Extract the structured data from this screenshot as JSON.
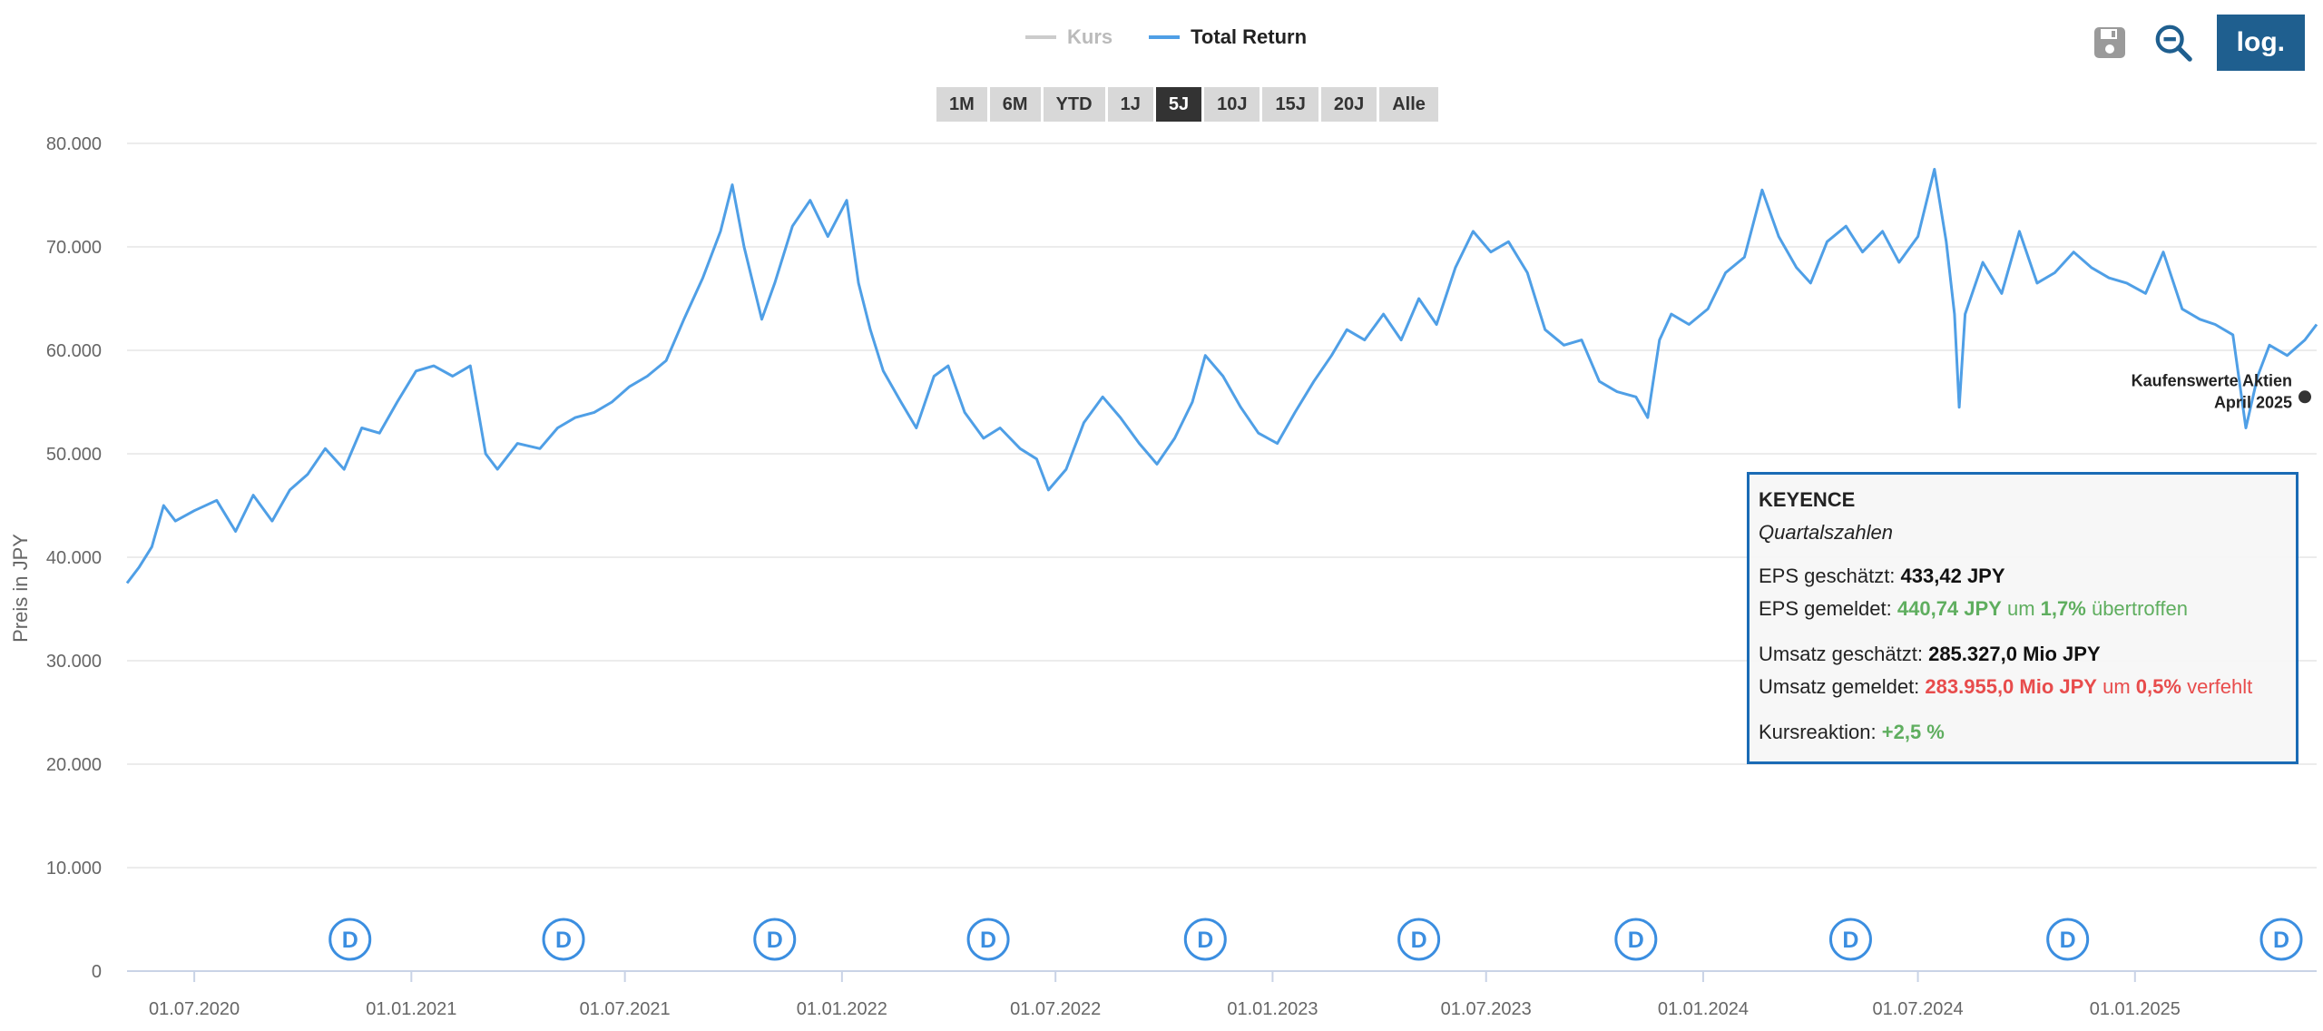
{
  "toolbar": {
    "log_label": "log."
  },
  "legend": [
    {
      "label": "Kurs",
      "color": "#cccccc"
    },
    {
      "label": "Total Return",
      "color": "#4f9fe6"
    }
  ],
  "ranges": {
    "items": [
      "1M",
      "6M",
      "YTD",
      "1J",
      "5J",
      "10J",
      "15J",
      "20J",
      "Alle"
    ],
    "active": "5J"
  },
  "tooltip": {
    "company": "KEYENCE",
    "subtitle": "Quartalszahlen",
    "eps_est_label": "EPS geschätzt:",
    "eps_est_value": "433,42 JPY",
    "eps_rep_label": "EPS gemeldet:",
    "eps_rep_value": "440,74 JPY",
    "eps_rep_um": "um",
    "eps_rep_pct": "1,7%",
    "eps_rep_result": "übertroffen",
    "rev_est_label": "Umsatz geschätzt:",
    "rev_est_value": "285.327,0 Mio JPY",
    "rev_rep_label": "Umsatz gemeldet:",
    "rev_rep_value": "283.955,0 Mio JPY",
    "rev_rep_um": "um",
    "rev_rep_pct": "0,5%",
    "rev_rep_result": "verfehlt",
    "reaction_label": "Kursreaktion:",
    "reaction_value": "+2,5 %"
  },
  "colors": {
    "line": "#4f9fe6",
    "grid": "#e6e6e6",
    "axis_text": "#666666",
    "dividend": "#3b8ee0",
    "tooltip_border": "#1a6bb5"
  },
  "chart_data": {
    "type": "line",
    "ylabel": "Preis in JPY",
    "ylim": [
      0,
      80000
    ],
    "yticks": [
      0,
      10000,
      20000,
      30000,
      40000,
      50000,
      60000,
      70000,
      80000
    ],
    "ytick_labels": [
      "0",
      "10.000",
      "20.000",
      "30.000",
      "40.000",
      "50.000",
      "60.000",
      "70.000",
      "80.000"
    ],
    "xlim": [
      "2020-05-05",
      "2025-06-04"
    ],
    "xticks": [
      "2020-07-01",
      "2021-01-01",
      "2021-07-01",
      "2022-01-01",
      "2022-07-01",
      "2023-01-01",
      "2023-07-01",
      "2024-01-01",
      "2024-07-01",
      "2025-01-01"
    ],
    "xtick_labels": [
      "01.07.2020",
      "01.01.2021",
      "01.07.2021",
      "01.01.2022",
      "01.07.2022",
      "01.01.2023",
      "01.07.2023",
      "01.01.2024",
      "01.07.2024",
      "01.01.2025"
    ],
    "grid": true,
    "legend_position": "top-center",
    "series": [
      {
        "name": "Total Return",
        "points": [
          [
            "2020-05-05",
            37500
          ],
          [
            "2020-05-15",
            39000
          ],
          [
            "2020-05-26",
            41000
          ],
          [
            "2020-06-05",
            45000
          ],
          [
            "2020-06-15",
            43500
          ],
          [
            "2020-07-01",
            44500
          ],
          [
            "2020-07-20",
            45500
          ],
          [
            "2020-08-05",
            42500
          ],
          [
            "2020-08-20",
            46000
          ],
          [
            "2020-09-05",
            43500
          ],
          [
            "2020-09-20",
            46500
          ],
          [
            "2020-10-05",
            48000
          ],
          [
            "2020-10-20",
            50500
          ],
          [
            "2020-11-05",
            48500
          ],
          [
            "2020-11-20",
            52500
          ],
          [
            "2020-12-05",
            52000
          ],
          [
            "2020-12-20",
            55000
          ],
          [
            "2021-01-05",
            58000
          ],
          [
            "2021-01-20",
            58500
          ],
          [
            "2021-02-05",
            57500
          ],
          [
            "2021-02-20",
            58500
          ],
          [
            "2021-03-05",
            50000
          ],
          [
            "2021-03-15",
            48500
          ],
          [
            "2021-04-01",
            51000
          ],
          [
            "2021-04-20",
            50500
          ],
          [
            "2021-05-05",
            52500
          ],
          [
            "2021-05-20",
            53500
          ],
          [
            "2021-06-05",
            54000
          ],
          [
            "2021-06-20",
            55000
          ],
          [
            "2021-07-05",
            56500
          ],
          [
            "2021-07-20",
            57500
          ],
          [
            "2021-08-05",
            59000
          ],
          [
            "2021-08-20",
            63000
          ],
          [
            "2021-09-05",
            67000
          ],
          [
            "2021-09-20",
            71500
          ],
          [
            "2021-09-30",
            76000
          ],
          [
            "2021-10-10",
            70000
          ],
          [
            "2021-10-25",
            63000
          ],
          [
            "2021-11-05",
            66500
          ],
          [
            "2021-11-20",
            72000
          ],
          [
            "2021-12-05",
            74500
          ],
          [
            "2021-12-20",
            71000
          ],
          [
            "2022-01-05",
            74500
          ],
          [
            "2022-01-15",
            66500
          ],
          [
            "2022-01-25",
            62000
          ],
          [
            "2022-02-05",
            58000
          ],
          [
            "2022-02-20",
            55000
          ],
          [
            "2022-03-05",
            52500
          ],
          [
            "2022-03-20",
            57500
          ],
          [
            "2022-04-01",
            58500
          ],
          [
            "2022-04-15",
            54000
          ],
          [
            "2022-05-01",
            51500
          ],
          [
            "2022-05-15",
            52500
          ],
          [
            "2022-06-01",
            50500
          ],
          [
            "2022-06-15",
            49500
          ],
          [
            "2022-06-25",
            46500
          ],
          [
            "2022-07-10",
            48500
          ],
          [
            "2022-07-25",
            53000
          ],
          [
            "2022-08-10",
            55500
          ],
          [
            "2022-08-25",
            53500
          ],
          [
            "2022-09-10",
            51000
          ],
          [
            "2022-09-25",
            49000
          ],
          [
            "2022-10-10",
            51500
          ],
          [
            "2022-10-25",
            55000
          ],
          [
            "2022-11-05",
            59500
          ],
          [
            "2022-11-20",
            57500
          ],
          [
            "2022-12-05",
            54500
          ],
          [
            "2022-12-20",
            52000
          ],
          [
            "2023-01-05",
            51000
          ],
          [
            "2023-01-20",
            54000
          ],
          [
            "2023-02-05",
            57000
          ],
          [
            "2023-02-20",
            59500
          ],
          [
            "2023-03-05",
            62000
          ],
          [
            "2023-03-20",
            61000
          ],
          [
            "2023-04-05",
            63500
          ],
          [
            "2023-04-20",
            61000
          ],
          [
            "2023-05-05",
            65000
          ],
          [
            "2023-05-20",
            62500
          ],
          [
            "2023-06-05",
            68000
          ],
          [
            "2023-06-20",
            71500
          ],
          [
            "2023-07-05",
            69500
          ],
          [
            "2023-07-20",
            70500
          ],
          [
            "2023-08-05",
            67500
          ],
          [
            "2023-08-20",
            62000
          ],
          [
            "2023-09-05",
            60500
          ],
          [
            "2023-09-20",
            61000
          ],
          [
            "2023-10-05",
            57000
          ],
          [
            "2023-10-20",
            56000
          ],
          [
            "2023-11-05",
            55500
          ],
          [
            "2023-11-15",
            53500
          ],
          [
            "2023-11-25",
            61000
          ],
          [
            "2023-12-05",
            63500
          ],
          [
            "2023-12-20",
            62500
          ],
          [
            "2024-01-05",
            64000
          ],
          [
            "2024-01-20",
            67500
          ],
          [
            "2024-02-05",
            69000
          ],
          [
            "2024-02-20",
            75500
          ],
          [
            "2024-03-05",
            71000
          ],
          [
            "2024-03-20",
            68000
          ],
          [
            "2024-04-01",
            66500
          ],
          [
            "2024-04-15",
            70500
          ],
          [
            "2024-05-01",
            72000
          ],
          [
            "2024-05-15",
            69500
          ],
          [
            "2024-06-01",
            71500
          ],
          [
            "2024-06-15",
            68500
          ],
          [
            "2024-07-01",
            71000
          ],
          [
            "2024-07-15",
            77500
          ],
          [
            "2024-07-25",
            70500
          ],
          [
            "2024-08-01",
            63500
          ],
          [
            "2024-08-05",
            54500
          ],
          [
            "2024-08-10",
            63500
          ],
          [
            "2024-08-25",
            68500
          ],
          [
            "2024-09-10",
            65500
          ],
          [
            "2024-09-25",
            71500
          ],
          [
            "2024-10-10",
            66500
          ],
          [
            "2024-10-25",
            67500
          ],
          [
            "2024-11-10",
            69500
          ],
          [
            "2024-11-25",
            68000
          ],
          [
            "2024-12-10",
            67000
          ],
          [
            "2024-12-25",
            66500
          ],
          [
            "2025-01-10",
            65500
          ],
          [
            "2025-01-25",
            69500
          ],
          [
            "2025-02-10",
            64000
          ],
          [
            "2025-02-25",
            63000
          ],
          [
            "2025-03-10",
            62500
          ],
          [
            "2025-03-25",
            61500
          ],
          [
            "2025-04-05",
            52500
          ],
          [
            "2025-04-15",
            57500
          ],
          [
            "2025-04-25",
            60500
          ],
          [
            "2025-05-10",
            59500
          ],
          [
            "2025-05-25",
            61000
          ],
          [
            "2025-06-04",
            62500
          ]
        ]
      }
    ],
    "dividend_marker_label": "D",
    "dividends": [
      "2020-11-10",
      "2021-05-10",
      "2021-11-05",
      "2022-05-05",
      "2022-11-05",
      "2023-05-05",
      "2023-11-05",
      "2024-05-05",
      "2024-11-05",
      "2025-05-05"
    ],
    "annotation": {
      "line1": "Kaufenswerte Aktien",
      "line2": "April 2025",
      "date": "2025-05-25",
      "value": 55500
    }
  }
}
